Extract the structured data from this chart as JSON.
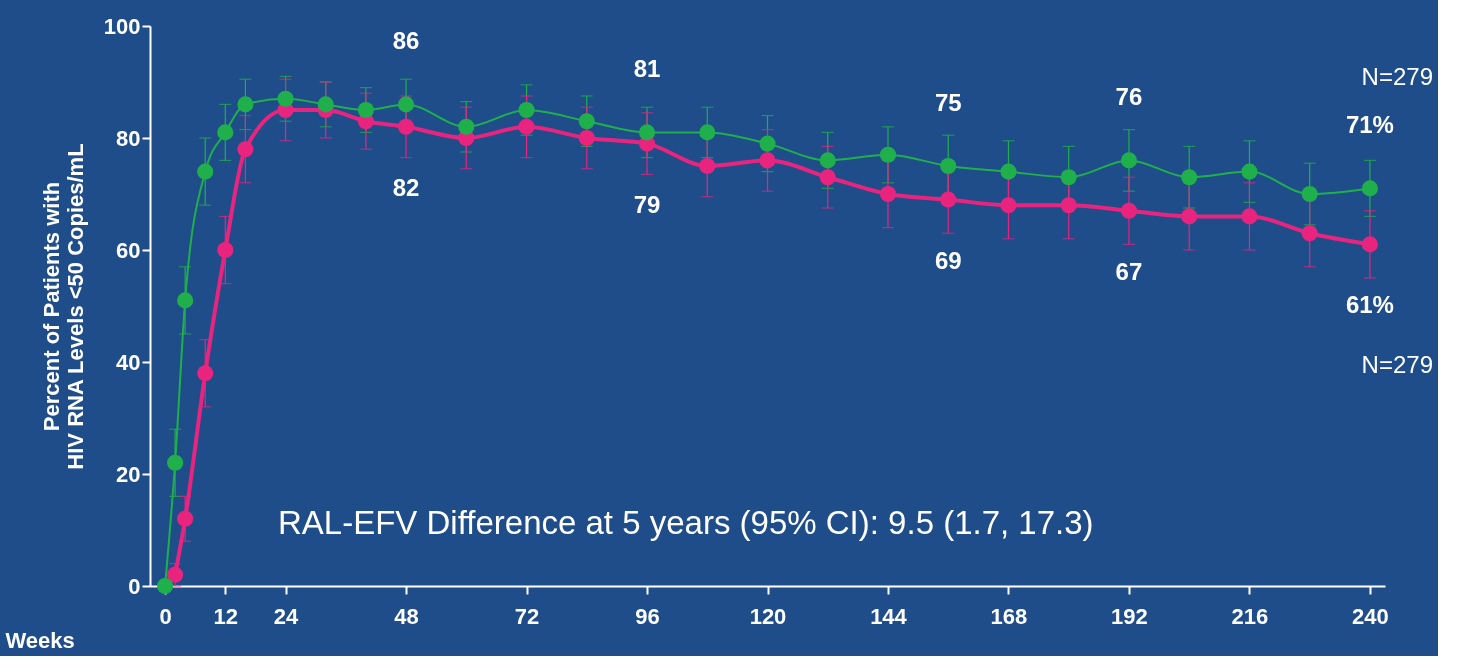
{
  "chart_data": {
    "type": "line",
    "ylabel": "Percent of Patients with\nHIV RNA Levels <50 Copies/mL",
    "xlabel": "Weeks",
    "x": [
      0,
      2,
      4,
      8,
      12,
      16,
      24,
      32,
      40,
      48,
      60,
      72,
      84,
      96,
      108,
      120,
      132,
      144,
      156,
      168,
      180,
      192,
      204,
      216,
      228,
      240
    ],
    "series": [
      {
        "color": "#1fb04c",
        "values": [
          0,
          22,
          51,
          74,
          81,
          86,
          87,
          86,
          85,
          86,
          82,
          85,
          83,
          81,
          81,
          79,
          76,
          77,
          75,
          74,
          73,
          76,
          73,
          74,
          70,
          71
        ],
        "errors": [
          null,
          6,
          6,
          6,
          5,
          4.5,
          4,
          4,
          4,
          4.5,
          4.5,
          4.5,
          4.5,
          4.5,
          4.5,
          5,
          5,
          5,
          5.5,
          5.5,
          5.5,
          5.5,
          5.5,
          5.5,
          5.5,
          5
        ]
      },
      {
        "color": "#e8247f",
        "values": [
          null,
          2,
          12,
          38,
          60,
          78,
          85,
          85,
          83,
          82,
          80,
          82,
          80,
          79,
          75,
          76,
          73,
          70,
          69,
          68,
          68,
          67,
          66,
          66,
          63,
          61
        ],
        "errors": [
          null,
          2,
          4,
          6,
          6,
          6,
          5.5,
          5,
          5,
          5.5,
          5.5,
          5.5,
          5.5,
          5.5,
          5.5,
          5.5,
          5.5,
          6,
          6,
          6,
          6,
          6,
          6,
          6,
          6,
          6
        ]
      }
    ],
    "xlim": [
      -3,
      243
    ],
    "xticks": [
      0,
      12,
      24,
      48,
      72,
      96,
      120,
      144,
      168,
      192,
      216,
      240
    ],
    "ylim": [
      0,
      100
    ],
    "yticks": [
      0,
      20,
      40,
      60,
      80,
      100
    ],
    "marker": "circle",
    "grid": false,
    "annotations": [
      {
        "text": "86",
        "x": 48,
        "y": 86
      },
      {
        "text": "82",
        "x": 48,
        "y": 82
      },
      {
        "text": "81",
        "x": 96,
        "y": 81
      },
      {
        "text": "79",
        "x": 96,
        "y": 79
      },
      {
        "text": "75",
        "x": 156,
        "y": 75
      },
      {
        "text": "69",
        "x": 156,
        "y": 69
      },
      {
        "text": "76",
        "x": 192,
        "y": 76
      },
      {
        "text": "67",
        "x": 192,
        "y": 67
      },
      {
        "text": "71%",
        "x": 240,
        "y": 71
      },
      {
        "text": "61%",
        "x": 240,
        "y": 61
      },
      "N=279",
      "N=279",
      "RAL-EFV Difference at 5 years (95% CI): 9.5 (1.7, 17.3)"
    ]
  }
}
